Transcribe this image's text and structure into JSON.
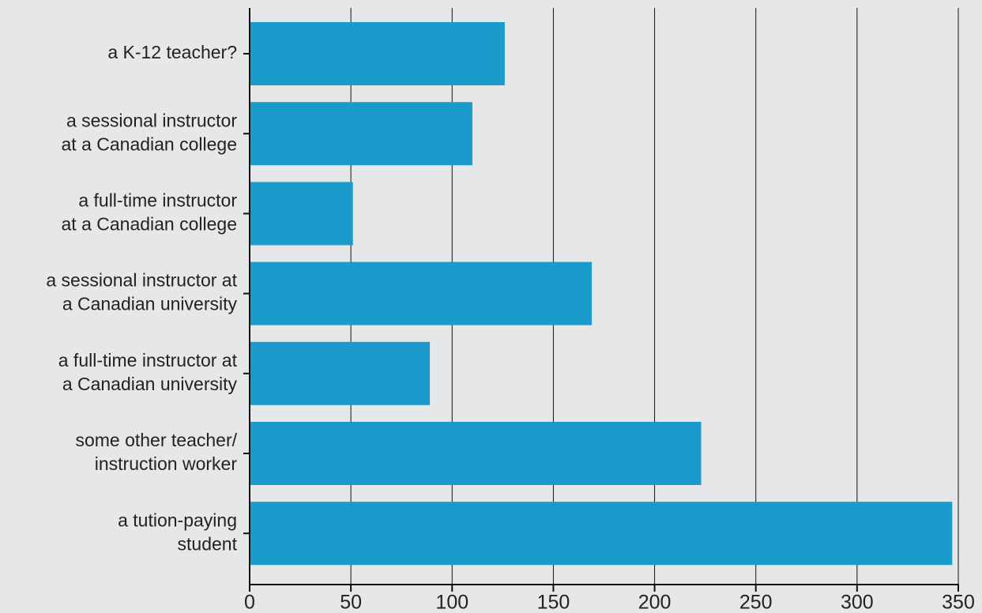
{
  "chart_data": {
    "type": "barh",
    "categories": [
      [
        "a K-12 teacher?"
      ],
      [
        "a sessional instructor",
        "at a Canadian college"
      ],
      [
        "a full-time instructor",
        "at a Canadian college"
      ],
      [
        "a sessional instructor at",
        "a Canadian university"
      ],
      [
        "a full-time instructor at",
        "a Canadian university"
      ],
      [
        "some other teacher/",
        "instruction worker"
      ],
      [
        "a tution-paying",
        "student"
      ]
    ],
    "values": [
      126,
      110,
      51,
      169,
      89,
      223,
      347
    ],
    "color": "#1b9bcb",
    "xlim": [
      0,
      350
    ],
    "xticks": [
      0,
      50,
      100,
      150,
      200,
      250,
      300,
      350
    ],
    "grid": true
  }
}
